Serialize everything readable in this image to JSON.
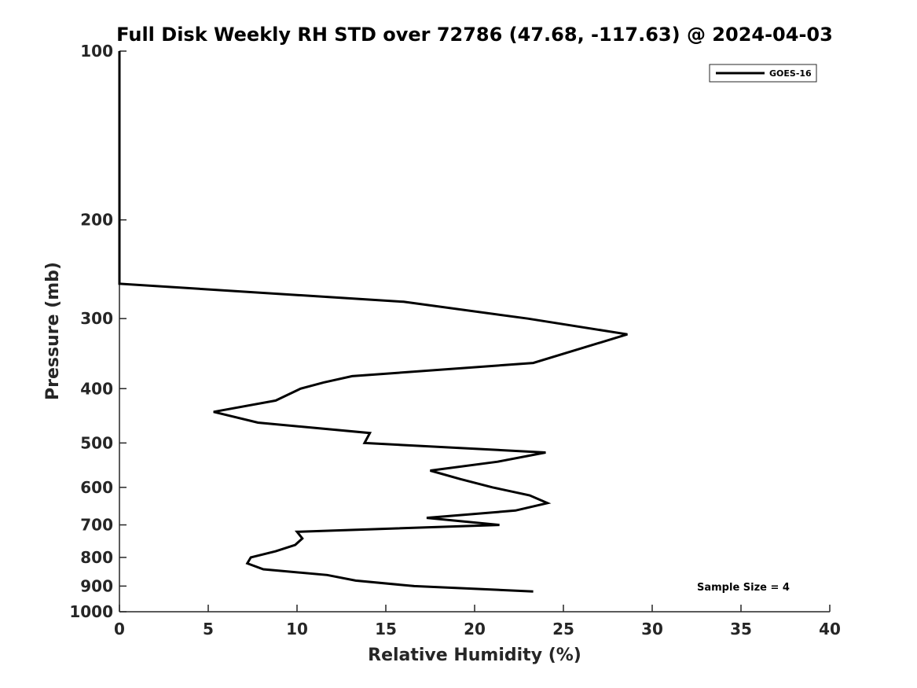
{
  "chart_data": {
    "type": "line",
    "title": "Full Disk Weekly RH STD over 72786 (47.68, -117.63) @ 2024-04-03",
    "xlabel": "Relative Humidity (%)",
    "ylabel": "Pressure (mb)",
    "xlim": [
      0,
      40
    ],
    "ylim": [
      100,
      1000
    ],
    "yscale": "log",
    "y_reversed": true,
    "x_ticks": [
      0,
      5,
      10,
      15,
      20,
      25,
      30,
      35,
      40
    ],
    "x_tick_labels": [
      "0",
      "5",
      "10",
      "15",
      "20",
      "25",
      "30",
      "35",
      "40"
    ],
    "y_ticks": [
      100,
      200,
      300,
      400,
      500,
      600,
      700,
      800,
      900,
      1000
    ],
    "y_tick_labels": [
      "100",
      "200",
      "300",
      "400",
      "500",
      "600",
      "700",
      "800",
      "900",
      "1000"
    ],
    "grid": false,
    "legend_position": "top-right",
    "series": [
      {
        "name": "GOES-16",
        "color": "#000000",
        "points": [
          {
            "x": 0.0,
            "y": 100
          },
          {
            "x": 0.0,
            "y": 150
          },
          {
            "x": 0.0,
            "y": 200
          },
          {
            "x": 0.0,
            "y": 250
          },
          {
            "x": 0.0,
            "y": 260
          },
          {
            "x": 16.0,
            "y": 280
          },
          {
            "x": 23.0,
            "y": 300
          },
          {
            "x": 28.6,
            "y": 320
          },
          {
            "x": 23.3,
            "y": 360
          },
          {
            "x": 13.1,
            "y": 380
          },
          {
            "x": 11.5,
            "y": 390
          },
          {
            "x": 10.2,
            "y": 400
          },
          {
            "x": 8.8,
            "y": 420
          },
          {
            "x": 5.3,
            "y": 440
          },
          {
            "x": 7.8,
            "y": 460
          },
          {
            "x": 14.1,
            "y": 480
          },
          {
            "x": 13.8,
            "y": 500
          },
          {
            "x": 24.0,
            "y": 520
          },
          {
            "x": 21.3,
            "y": 540
          },
          {
            "x": 17.5,
            "y": 560
          },
          {
            "x": 19.2,
            "y": 580
          },
          {
            "x": 21.0,
            "y": 600
          },
          {
            "x": 23.1,
            "y": 620
          },
          {
            "x": 24.1,
            "y": 640
          },
          {
            "x": 22.3,
            "y": 660
          },
          {
            "x": 17.3,
            "y": 680
          },
          {
            "x": 21.4,
            "y": 700
          },
          {
            "x": 10.0,
            "y": 720
          },
          {
            "x": 10.3,
            "y": 740
          },
          {
            "x": 9.9,
            "y": 760
          },
          {
            "x": 8.8,
            "y": 780
          },
          {
            "x": 7.4,
            "y": 800
          },
          {
            "x": 7.2,
            "y": 820
          },
          {
            "x": 8.1,
            "y": 840
          },
          {
            "x": 11.7,
            "y": 860
          },
          {
            "x": 13.3,
            "y": 880
          },
          {
            "x": 16.6,
            "y": 900
          },
          {
            "x": 23.3,
            "y": 920
          }
        ]
      }
    ],
    "annotations": [
      {
        "text": "Sample Size = 4",
        "position": "bottom-right"
      }
    ]
  }
}
